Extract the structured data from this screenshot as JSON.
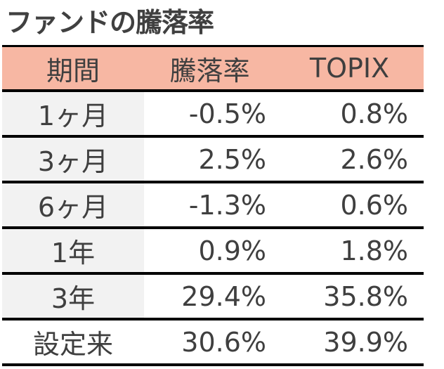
{
  "title": "ファンドの騰落率",
  "colors": {
    "header_bg": "#f7b7a3",
    "period_cell_bg": "#f2f2f2",
    "value_cell_bg": "#ffffff",
    "rule": "#000000",
    "text": "#3f3f3f"
  },
  "table": {
    "headers": [
      "期間",
      "騰落率",
      "TOPIX"
    ],
    "rows": [
      {
        "period": "1ヶ月",
        "fund": "-0.5%",
        "topix": "0.8%",
        "shaded": true
      },
      {
        "period": "3ヶ月",
        "fund": "2.5%",
        "topix": "2.6%",
        "shaded": true
      },
      {
        "period": "6ヶ月",
        "fund": "-1.3%",
        "topix": "0.6%",
        "shaded": true
      },
      {
        "period": "1年",
        "fund": "0.9%",
        "topix": "1.8%",
        "shaded": true
      },
      {
        "period": "3年",
        "fund": "29.4%",
        "topix": "35.8%",
        "shaded": true
      },
      {
        "period": "設定来",
        "fund": "30.6%",
        "topix": "39.9%",
        "shaded": false
      }
    ]
  }
}
